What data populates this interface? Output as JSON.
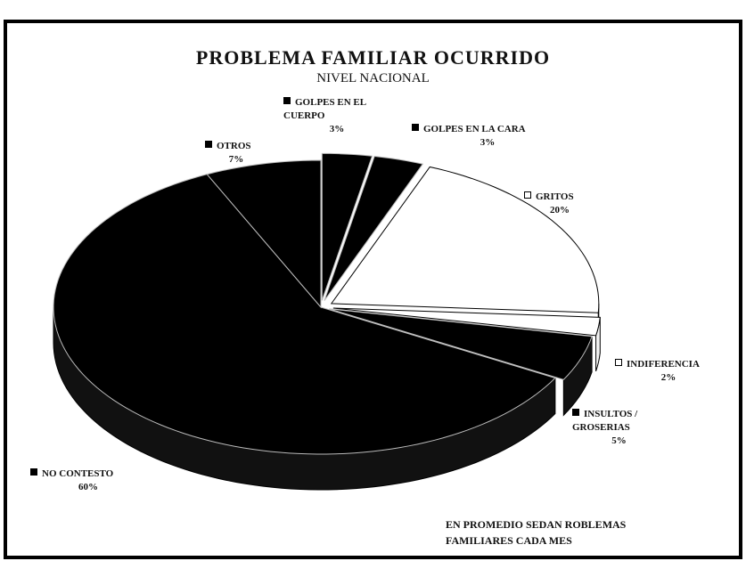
{
  "chart_data": {
    "type": "pie",
    "title": "PROBLEMA FAMILIAR OCURRIDO",
    "subtitle": "NIVEL NACIONAL",
    "annotation": "EN PROMEDIO SEDAN ROBLEMAS FAMILIARES CADA MES",
    "categories": [
      "GOLPES EN EL CUERPO",
      "GOLPES EN LA CARA",
      "GRITOS",
      "INDIFERENCIA",
      "INSULTOS / GROSERIAS",
      "NO CONTESTO",
      "OTROS"
    ],
    "values": [
      3,
      3,
      20,
      2,
      5,
      60,
      7
    ],
    "value_labels": [
      "3%",
      "3%",
      "20%",
      "2%",
      "5%",
      "60%",
      "7%"
    ],
    "colors": [
      "#000000",
      "#000000",
      "#ffffff",
      "#ffffff",
      "#000000",
      "#000000",
      "#000000"
    ]
  }
}
